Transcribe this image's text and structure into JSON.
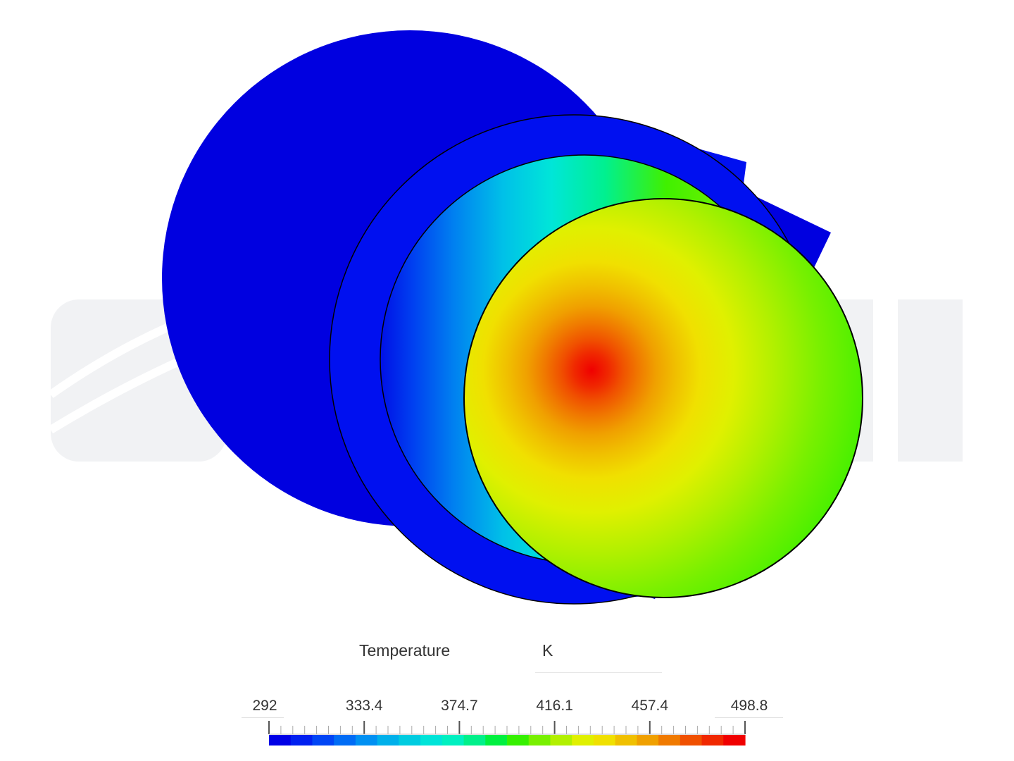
{
  "legend": {
    "title": "Temperature",
    "unit": "K",
    "min": 292,
    "max": 498.8,
    "tick_labels": [
      "292",
      "333.4",
      "374.7",
      "416.1",
      "457.4",
      "498.8"
    ],
    "colors": [
      "#0000e6",
      "#0020f0",
      "#0045f5",
      "#006cf5",
      "#0090f2",
      "#00b0ea",
      "#00cce0",
      "#00e4d8",
      "#00f0c0",
      "#00f08a",
      "#00f040",
      "#36f000",
      "#78f000",
      "#b2f000",
      "#e0f000",
      "#f0e000",
      "#f0c000",
      "#f0a000",
      "#f07a00",
      "#f05000",
      "#f02800",
      "#f00000"
    ],
    "watermark_color": "#f1f2f4"
  }
}
